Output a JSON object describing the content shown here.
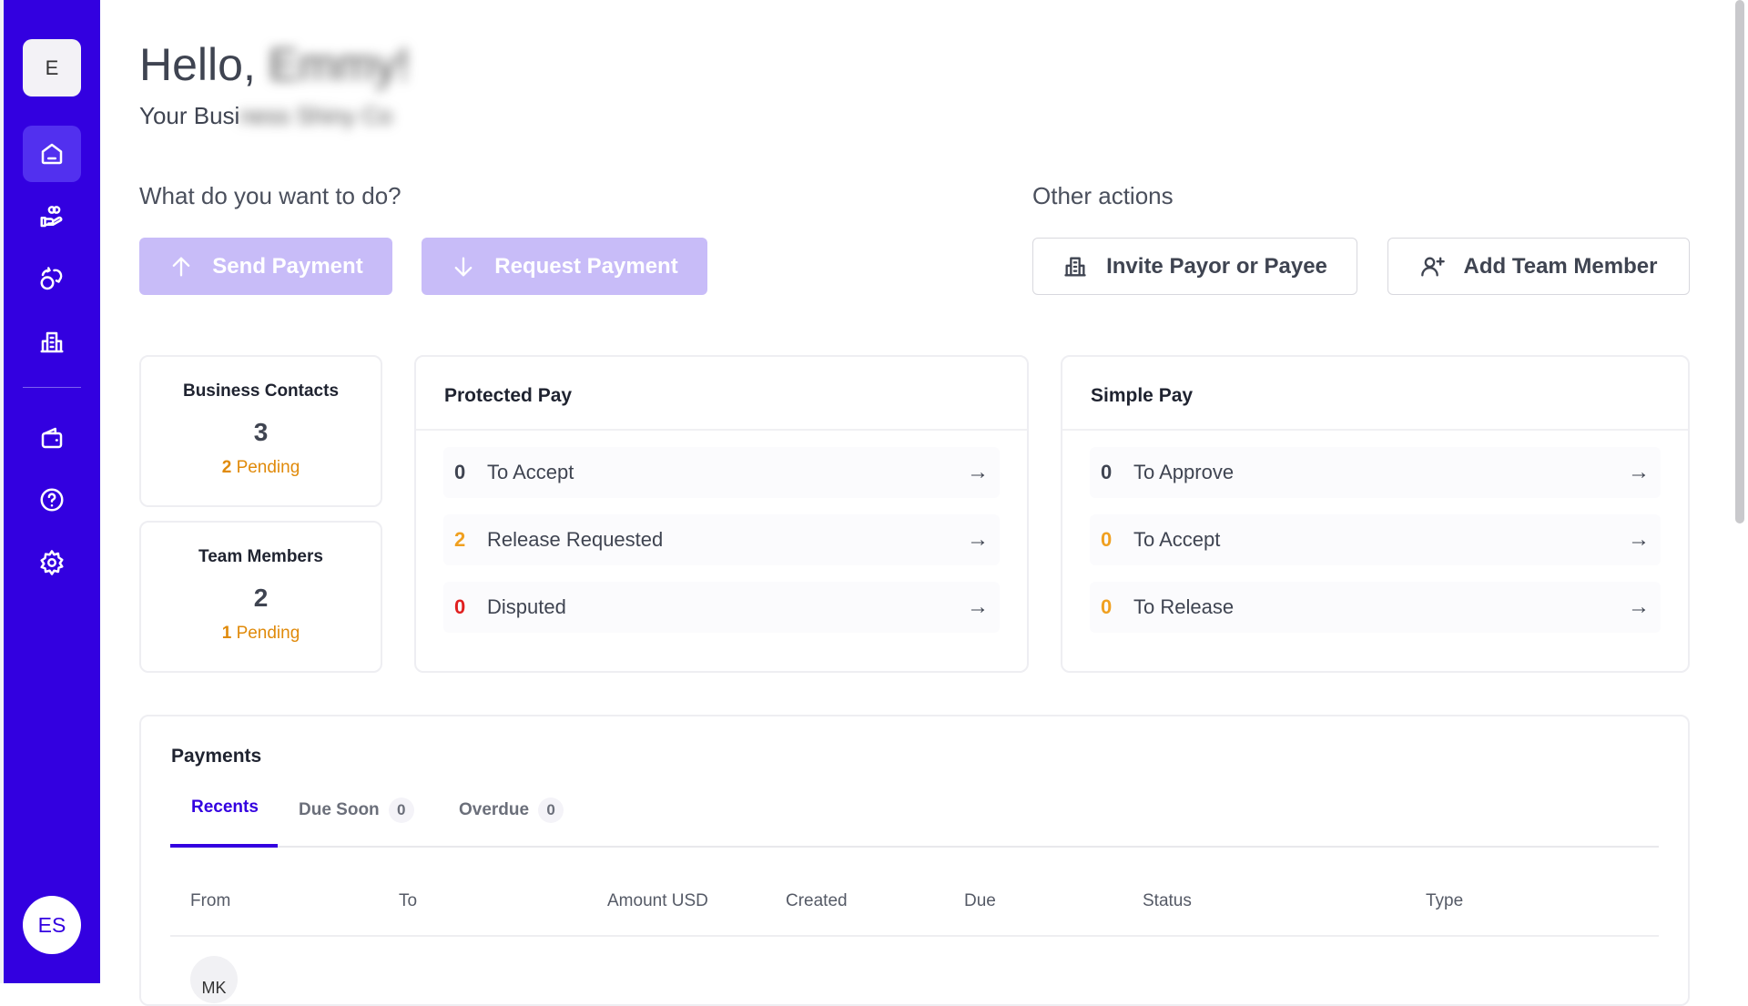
{
  "sidebar": {
    "logo_letter": "E",
    "items": [
      {
        "icon": "home-icon",
        "active": true
      },
      {
        "icon": "hand-coins-icon"
      },
      {
        "icon": "exchange-icon"
      },
      {
        "icon": "building-icon"
      },
      {
        "icon": "wallet-icon"
      },
      {
        "icon": "help-icon"
      },
      {
        "icon": "gear-icon"
      }
    ],
    "user_initials": "ES",
    "color": "#3300e0"
  },
  "header": {
    "greeting": "Hello,",
    "name_blurred": "Emmy!",
    "subtitle": "Your Busi",
    "subtitle_blurred": "ness Shiny Co"
  },
  "actions": {
    "title": "What do you want to do?",
    "send": "Send Payment",
    "request": "Request Payment",
    "other_title": "Other actions",
    "invite": "Invite Payor or Payee",
    "add_team": "Add Team Member"
  },
  "stats": {
    "contacts": {
      "title": "Business Contacts",
      "count": "3",
      "pending_count": "2",
      "pending_label": "Pending"
    },
    "team": {
      "title": "Team Members",
      "count": "2",
      "pending_count": "1",
      "pending_label": "Pending"
    }
  },
  "protected_pay": {
    "title": "Protected Pay",
    "rows": [
      {
        "count": "0",
        "label": "To Accept",
        "color": "#3f4451"
      },
      {
        "count": "2",
        "label": "Release Requested",
        "color": "#f0a020"
      },
      {
        "count": "0",
        "label": "Disputed",
        "color": "#e02020"
      }
    ]
  },
  "simple_pay": {
    "title": "Simple Pay",
    "rows": [
      {
        "count": "0",
        "label": "To Approve",
        "color": "#3f4451"
      },
      {
        "count": "0",
        "label": "To Accept",
        "color": "#f0a020"
      },
      {
        "count": "0",
        "label": "To Release",
        "color": "#f0a020"
      }
    ]
  },
  "payments": {
    "title": "Payments",
    "tabs": [
      {
        "label": "Recents",
        "active": true
      },
      {
        "label": "Due Soon",
        "count": "0"
      },
      {
        "label": "Overdue",
        "count": "0"
      }
    ],
    "columns": [
      "From",
      "To",
      "Amount USD",
      "Created",
      "Due",
      "Status",
      "Type"
    ],
    "first_row_initials": "MK"
  }
}
